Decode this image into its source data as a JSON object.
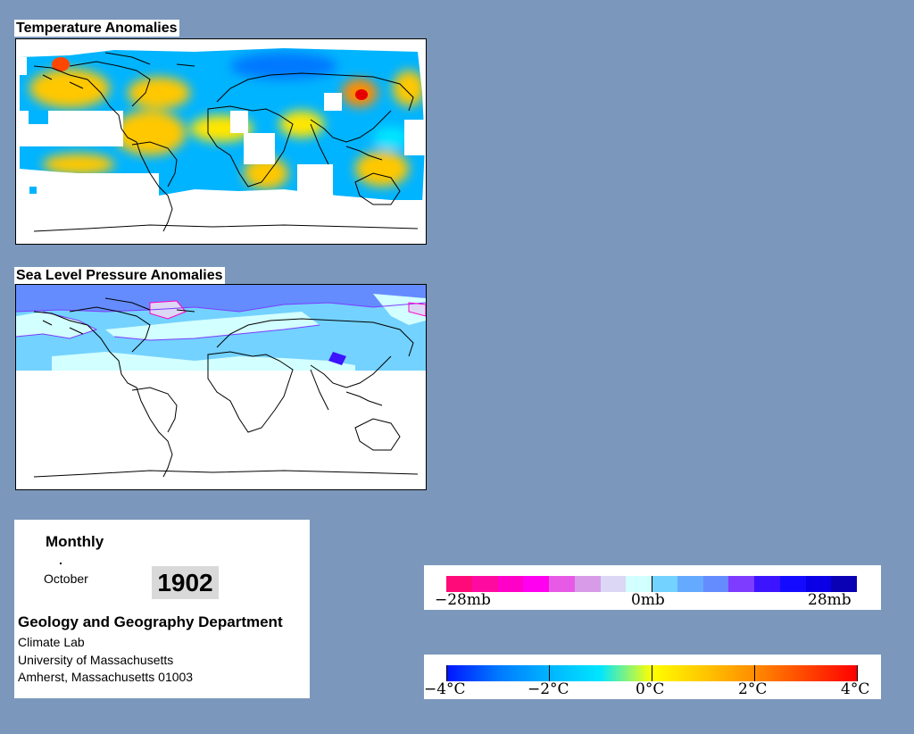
{
  "panels": {
    "temperature_title": "Temperature Anomalies",
    "pressure_title": "Sea Level Pressure Anomalies"
  },
  "info": {
    "period": "Monthly",
    "month": "October",
    "year": "1902",
    "department": "Geology and Geography Department",
    "lab": "Climate Lab",
    "university": "University of Massachusetts",
    "address": "Amherst, Massachusetts 01003"
  },
  "pressure_legend": {
    "colors": [
      "#ff0a78",
      "#ff0aa0",
      "#ff00c8",
      "#ff00f0",
      "#e65ae6",
      "#d79be8",
      "#dcd7f5",
      "#d2ffff",
      "#73d2ff",
      "#64aaff",
      "#648cff",
      "#7d3cff",
      "#3c14ff",
      "#140aff",
      "#0a00e6",
      "#0a00b4"
    ],
    "labels": [
      "−28mb",
      "0mb",
      "28mb"
    ]
  },
  "temperature_legend": {
    "colors": [
      "#0014ff",
      "#0078ff",
      "#00b4ff",
      "#00e6ff",
      "#ffff00",
      "#ffc800",
      "#ff8c00",
      "#ff4600",
      "#ff0000"
    ],
    "labels": [
      "−4°C",
      "−2°C",
      "0°C",
      "2°C",
      "4°C"
    ]
  }
}
